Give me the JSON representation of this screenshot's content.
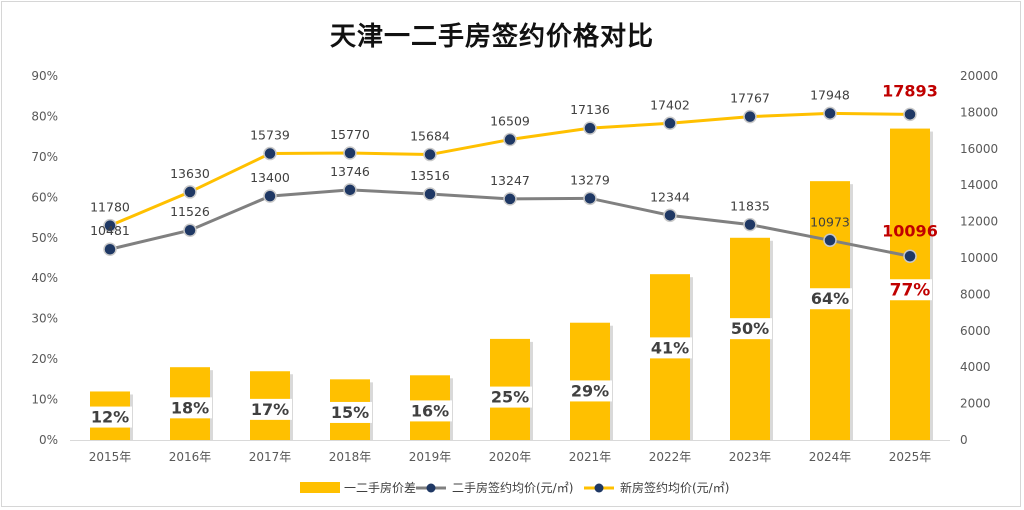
{
  "chart_data": {
    "type": "bar+line",
    "title": "天津一二手房签约价格对比",
    "categories": [
      "2015年",
      "2016年",
      "2017年",
      "2018年",
      "2019年",
      "2020年",
      "2021年",
      "2022年",
      "2023年",
      "2024年",
      "2025年"
    ],
    "series": [
      {
        "name": "一二手房价差",
        "type": "bar",
        "axis": "left",
        "color": "#FFC000",
        "values": [
          12,
          18,
          17,
          15,
          16,
          25,
          29,
          41,
          50,
          64,
          77
        ],
        "labels": [
          "12%",
          "18%",
          "17%",
          "15%",
          "16%",
          "25%",
          "29%",
          "41%",
          "50%",
          "64%",
          "77%"
        ]
      },
      {
        "name": "二手房签约均价(元/㎡)",
        "type": "line",
        "axis": "right",
        "color": "#808080",
        "marker_color": "#1F3864",
        "values": [
          10481,
          11526,
          13400,
          13746,
          13516,
          13247,
          13279,
          12344,
          11835,
          10973,
          10096
        ]
      },
      {
        "name": "新房签约均价(元/㎡)",
        "type": "line",
        "axis": "right",
        "color": "#FFC000",
        "marker_color": "#1F3864",
        "values": [
          11780,
          13630,
          15739,
          15770,
          15684,
          16509,
          17136,
          17402,
          17767,
          17948,
          17893
        ]
      }
    ],
    "y_left": {
      "min": 0,
      "max": 90,
      "step": 10,
      "tick_labels": [
        "0%",
        "10%",
        "20%",
        "30%",
        "40%",
        "50%",
        "60%",
        "70%",
        "80%",
        "90%"
      ]
    },
    "y_right": {
      "min": 0,
      "max": 20000,
      "step": 2000,
      "tick_labels": [
        "0",
        "2000",
        "4000",
        "6000",
        "8000",
        "10000",
        "12000",
        "14000",
        "16000",
        "18000",
        "20000"
      ]
    },
    "highlight_color": "#C00000",
    "legend_position": "bottom",
    "grid": false
  }
}
